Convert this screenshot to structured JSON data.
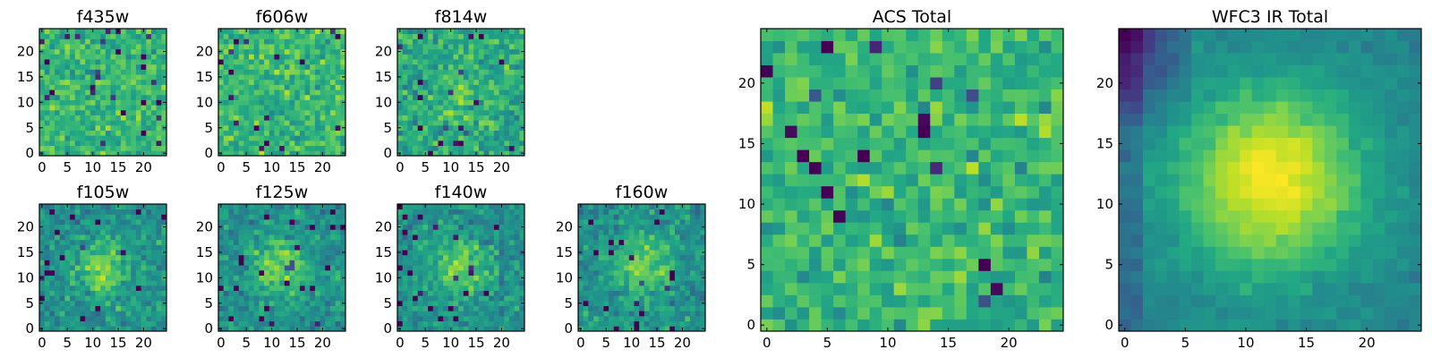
{
  "chart_data": [
    {
      "type": "heatmap",
      "title": "f435w",
      "xticks": [
        "0",
        "5",
        "10",
        "15",
        "20"
      ],
      "yticks": [
        "0",
        "5",
        "10",
        "15",
        "20"
      ],
      "xlim": [
        0,
        25
      ],
      "ylim": [
        0,
        25
      ],
      "grid_size": [
        25,
        25
      ],
      "colormap": "viridis",
      "pattern": "noise",
      "grid": false
    },
    {
      "type": "heatmap",
      "title": "f606w",
      "xticks": [
        "0",
        "5",
        "10",
        "15",
        "20"
      ],
      "yticks": [
        "0",
        "5",
        "10",
        "15",
        "20"
      ],
      "xlim": [
        0,
        25
      ],
      "ylim": [
        0,
        25
      ],
      "grid_size": [
        25,
        25
      ],
      "colormap": "viridis",
      "pattern": "noise",
      "grid": false
    },
    {
      "type": "heatmap",
      "title": "f814w",
      "xticks": [
        "0",
        "5",
        "10",
        "15",
        "20"
      ],
      "yticks": [
        "0",
        "5",
        "10",
        "15",
        "20"
      ],
      "xlim": [
        0,
        25
      ],
      "ylim": [
        0,
        25
      ],
      "grid_size": [
        25,
        25
      ],
      "colormap": "viridis",
      "pattern": "noise with faint central source",
      "grid": false
    },
    {
      "type": "heatmap",
      "title": "f105w",
      "xticks": [
        "0",
        "5",
        "10",
        "15",
        "20"
      ],
      "yticks": [
        "0",
        "5",
        "10",
        "15",
        "20"
      ],
      "xlim": [
        0,
        25
      ],
      "ylim": [
        0,
        25
      ],
      "grid_size": [
        25,
        25
      ],
      "colormap": "viridis",
      "pattern": "central source",
      "grid": false
    },
    {
      "type": "heatmap",
      "title": "f125w",
      "xticks": [
        "0",
        "5",
        "10",
        "15",
        "20"
      ],
      "yticks": [
        "0",
        "5",
        "10",
        "15",
        "20"
      ],
      "xlim": [
        0,
        25
      ],
      "ylim": [
        0,
        25
      ],
      "grid_size": [
        25,
        25
      ],
      "colormap": "viridis",
      "pattern": "central source",
      "grid": false
    },
    {
      "type": "heatmap",
      "title": "f140w",
      "xticks": [
        "0",
        "5",
        "10",
        "15",
        "20"
      ],
      "yticks": [
        "0",
        "5",
        "10",
        "15",
        "20"
      ],
      "xlim": [
        0,
        25
      ],
      "ylim": [
        0,
        25
      ],
      "grid_size": [
        25,
        25
      ],
      "colormap": "viridis",
      "pattern": "central source",
      "grid": false
    },
    {
      "type": "heatmap",
      "title": "f160w",
      "xticks": [
        "0",
        "5",
        "10",
        "15",
        "20"
      ],
      "yticks": [
        "0",
        "5",
        "10",
        "15",
        "20"
      ],
      "xlim": [
        0,
        25
      ],
      "ylim": [
        0,
        25
      ],
      "grid_size": [
        25,
        25
      ],
      "colormap": "viridis",
      "pattern": "central source",
      "grid": false
    },
    {
      "type": "heatmap",
      "title": "ACS Total",
      "xticks": [
        "0",
        "5",
        "10",
        "15",
        "20"
      ],
      "yticks": [
        "0",
        "5",
        "10",
        "15",
        "20"
      ],
      "xlim": [
        0,
        25
      ],
      "ylim": [
        0,
        25
      ],
      "grid_size": [
        25,
        25
      ],
      "colormap": "viridis",
      "pattern": "noise",
      "grid": false
    },
    {
      "type": "heatmap",
      "title": "WFC3 IR Total",
      "xticks": [
        "0",
        "5",
        "10",
        "15",
        "20"
      ],
      "yticks": [
        "0",
        "5",
        "10",
        "15",
        "20"
      ],
      "xlim": [
        0,
        25
      ],
      "ylim": [
        0,
        25
      ],
      "grid_size": [
        25,
        25
      ],
      "colormap": "viridis",
      "pattern": "bright central source, dark top-left corner",
      "grid": false
    }
  ],
  "colors": {
    "frame": "#000000",
    "background": "#ffffff"
  }
}
